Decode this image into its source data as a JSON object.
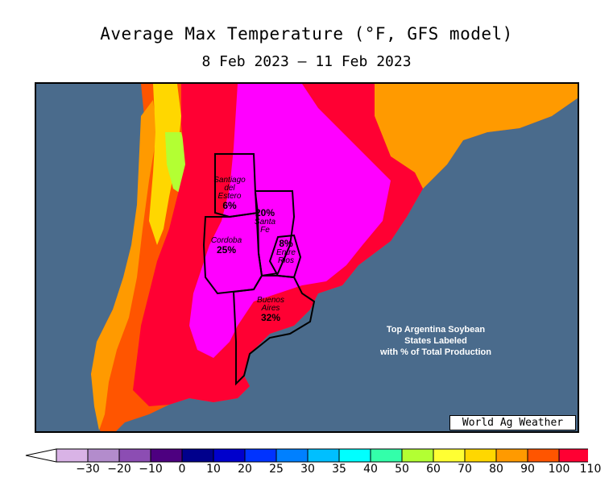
{
  "title": "Average Max Temperature (°F, GFS model)",
  "subtitle": "8 Feb 2023 – 11 Feb 2023",
  "colors": {
    "ocean": "#4a6b8c",
    "temp_110": "#ff00ff",
    "temp_100": "#ff0033",
    "temp_90": "#ff5500",
    "temp_80": "#ff9a00",
    "temp_70": "#ffd700",
    "temp_60": "#ffff33",
    "temp_50": "#b3ff33",
    "temp_40": "#33ffaa"
  },
  "states": [
    {
      "name_lines": [
        "Santiago",
        "del",
        "Estero"
      ],
      "pct": "6%"
    },
    {
      "name_lines": [
        "Santa",
        "Fe"
      ],
      "pct": "20%"
    },
    {
      "name_lines": [
        "Cordoba"
      ],
      "pct": "25%"
    },
    {
      "name_lines": [
        "Entre",
        "Rios"
      ],
      "pct": "8%"
    },
    {
      "name_lines": [
        "Buenos",
        "Aires"
      ],
      "pct": "32%"
    }
  ],
  "note_lines": [
    "Top Argentina Soybean",
    "States Labeled",
    "with % of Total Production"
  ],
  "credit": "World Ag Weather",
  "colorbar": {
    "ticks": [
      "−30",
      "−20",
      "−10",
      "0",
      "10",
      "20",
      "25",
      "30",
      "35",
      "40",
      "50",
      "60",
      "70",
      "80",
      "90",
      "100",
      "110"
    ],
    "colors": [
      "#d9b3e6",
      "#b38ccc",
      "#8c4db3",
      "#4d0080",
      "#00008c",
      "#0000cc",
      "#0033ff",
      "#0080ff",
      "#00bfff",
      "#00ffff",
      "#33ffaa",
      "#b3ff33",
      "#ffff33",
      "#ffd700",
      "#ff9a00",
      "#ff5500",
      "#ff0033",
      "#ff00ff"
    ]
  }
}
